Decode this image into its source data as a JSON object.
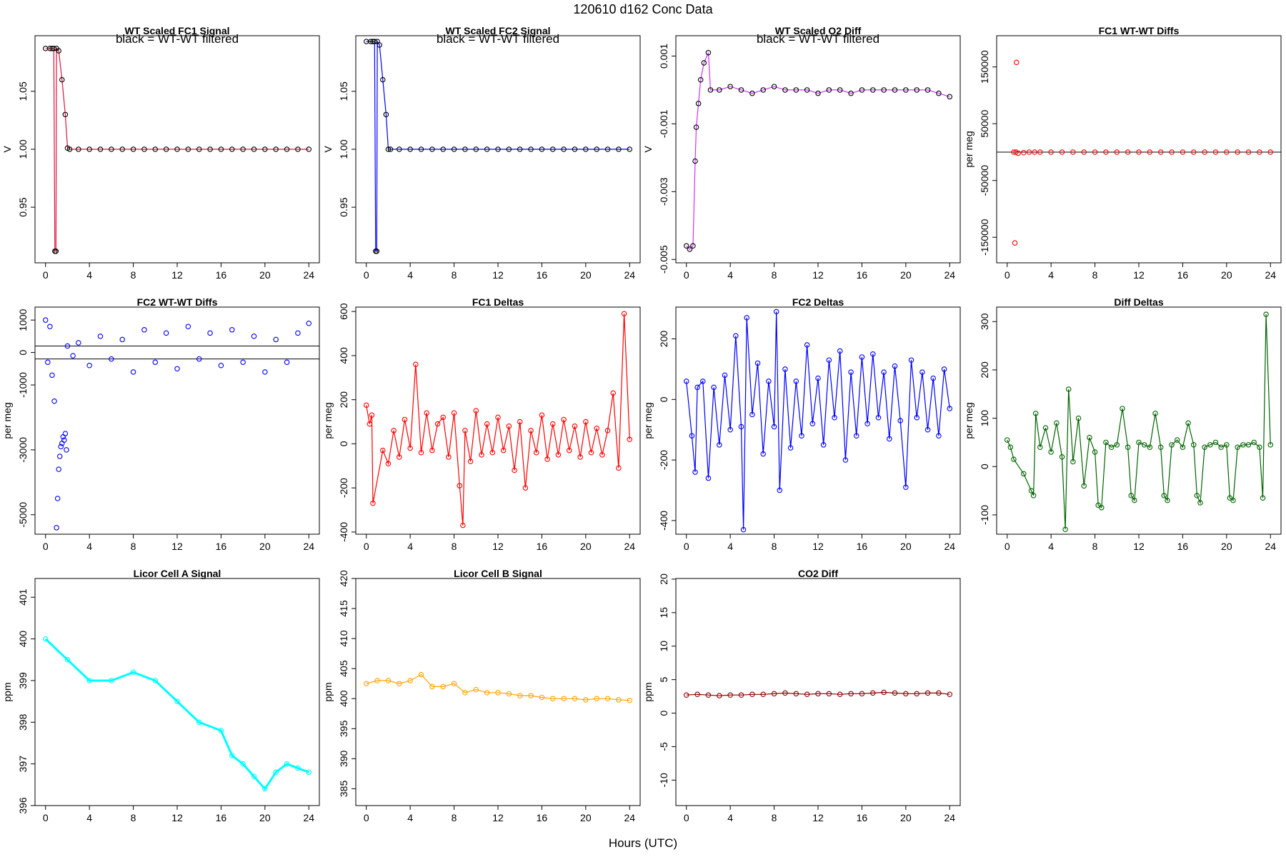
{
  "figure": {
    "title": "120610    d162    Conc Data",
    "xlabel": "Hours (UTC)"
  },
  "chart_data": [
    {
      "type": "line",
      "title": "WT Scaled FC1 Signal",
      "ylabel": "V",
      "note": "black = WT-WT filtered",
      "color": "#DC143C",
      "marker": "#000000",
      "xlim": [
        -0.96,
        24.96
      ],
      "xticks": [
        0,
        4,
        8,
        12,
        16,
        20,
        24
      ],
      "ylim": [
        0.902,
        1.098
      ],
      "yticks": [
        "0.95",
        "1.00",
        "1.05"
      ],
      "yticks_at": [
        0.95,
        1.0,
        1.05
      ],
      "x": [
        0,
        0.4,
        0.6,
        0.75,
        0.85,
        0.95,
        1.0,
        1.2,
        1.5,
        1.8,
        2.0,
        2.2,
        3,
        4,
        5,
        6,
        7,
        8,
        9,
        10,
        11,
        12,
        13,
        14,
        15,
        16,
        17,
        18,
        19,
        20,
        21,
        22,
        23,
        24
      ],
      "y": [
        1.087,
        1.087,
        1.087,
        1.087,
        0.912,
        0.912,
        1.087,
        1.085,
        1.06,
        1.03,
        1.001,
        1.0,
        1.0,
        1.0,
        1.0,
        1.0,
        1.0,
        1.0,
        1.0,
        1.0,
        1.0,
        1.0,
        1.0,
        1.0,
        1.0,
        1.0,
        1.0,
        1.0,
        1.0,
        1.0,
        1.0,
        1.0,
        1.0,
        1.0
      ]
    },
    {
      "type": "line",
      "title": "WT Scaled FC2 Signal",
      "ylabel": "V",
      "note": "black = WT-WT filtered",
      "color": "#0000FF",
      "marker": "#000000",
      "xlim": [
        -0.96,
        24.96
      ],
      "xticks": [
        0,
        4,
        8,
        12,
        16,
        20,
        24
      ],
      "ylim": [
        0.902,
        1.098
      ],
      "yticks": [
        "0.95",
        "1.00",
        "1.05"
      ],
      "yticks_at": [
        0.95,
        1.0,
        1.05
      ],
      "x": [
        0,
        0.4,
        0.6,
        0.75,
        0.85,
        0.95,
        1.0,
        1.2,
        1.5,
        1.8,
        2.0,
        2.2,
        3,
        4,
        5,
        6,
        7,
        8,
        9,
        10,
        11,
        12,
        13,
        14,
        15,
        16,
        17,
        18,
        19,
        20,
        21,
        22,
        23,
        24
      ],
      "y": [
        1.093,
        1.093,
        1.093,
        1.093,
        0.912,
        0.912,
        1.093,
        1.09,
        1.06,
        1.03,
        1.0,
        1.0,
        1.0,
        1.0,
        1.0,
        1.0,
        1.0,
        1.0,
        1.0,
        1.0,
        1.0,
        1.0,
        1.0,
        1.0,
        1.0,
        1.0,
        1.0,
        1.0,
        1.0,
        1.0,
        1.0,
        1.0,
        1.0,
        1.0
      ]
    },
    {
      "type": "line",
      "title": "WT Scaled O2 Diff",
      "ylabel": "V",
      "note": "black = WT-WT filtered",
      "color": "#CC33FF",
      "marker": "#000000",
      "xlim": [
        -0.96,
        24.96
      ],
      "xticks": [
        0,
        4,
        8,
        12,
        16,
        20,
        24
      ],
      "ylim": [
        -0.0051,
        0.0016
      ],
      "yticks": [
        "-0.005",
        "-0.003",
        "-0.001",
        "0.001"
      ],
      "yticks_at": [
        -0.005,
        -0.003,
        -0.001,
        0.001
      ],
      "x": [
        0,
        0.3,
        0.6,
        0.8,
        0.9,
        1.1,
        1.3,
        1.6,
        2.0,
        2.2,
        3,
        4,
        5,
        6,
        7,
        8,
        9,
        10,
        11,
        12,
        13,
        14,
        15,
        16,
        17,
        18,
        19,
        20,
        21,
        22,
        23,
        24
      ],
      "y": [
        -0.0046,
        -0.0047,
        -0.0046,
        -0.0021,
        -0.0011,
        -0.0004,
        0.0003,
        0.0008,
        0.0011,
        0.0,
        0.0,
        0.0001,
        0.0,
        -0.0001,
        0.0,
        0.0001,
        0.0,
        0.0,
        0.0,
        -0.0001,
        0.0,
        0.0,
        -0.0001,
        0.0,
        0.0,
        0.0,
        0.0,
        0.0,
        0.0,
        0.0,
        -0.0001,
        -0.0002
      ]
    },
    {
      "type": "scatter",
      "title": "FC1 WT-WT Diffs",
      "ylabel": "per meg",
      "color": "#FF0000",
      "xlim": [
        -0.96,
        24.96
      ],
      "xticks": [
        0,
        4,
        8,
        12,
        16,
        20,
        24
      ],
      "ylim": [
        -195000,
        205000
      ],
      "yticks": [
        "-150000",
        "-50000",
        "50000",
        "150000"
      ],
      "yticks_at": [
        -150000,
        -50000,
        50000,
        150000
      ],
      "hlines": [
        0
      ],
      "x": [
        0.6,
        0.8,
        1.0,
        1.5,
        2,
        2.5,
        3,
        4,
        5,
        6,
        7,
        8,
        9,
        10,
        11,
        12,
        13,
        14,
        15,
        16,
        17,
        18,
        19,
        20,
        21,
        22,
        23,
        24,
        0.7,
        0.85
      ],
      "y": [
        0,
        0,
        -2000,
        -1000,
        0,
        0,
        0,
        0,
        0,
        0,
        0,
        0,
        0,
        0,
        0,
        0,
        0,
        0,
        0,
        0,
        0,
        0,
        0,
        0,
        0,
        0,
        0,
        0,
        -160000,
        158000
      ]
    },
    {
      "type": "scatter",
      "title": "FC2 WT-WT Diffs",
      "ylabel": "per meg",
      "color": "#0000FF",
      "xlim": [
        -0.96,
        24.96
      ],
      "xticks": [
        0,
        4,
        8,
        12,
        16,
        20,
        24
      ],
      "ylim": [
        -5600,
        1400
      ],
      "yticks": [
        "-5000",
        "-3000",
        "-1000",
        "0",
        "1000"
      ],
      "yticks_at": [
        -5000,
        -3000,
        -1000,
        0,
        1000
      ],
      "hlines": [
        200,
        -200
      ],
      "x": [
        0,
        0.2,
        0.4,
        0.6,
        0.8,
        1.0,
        1.1,
        1.2,
        1.3,
        1.4,
        1.5,
        1.6,
        1.7,
        1.8,
        1.9,
        2.0,
        2.5,
        3,
        4,
        5,
        6,
        7,
        8,
        9,
        10,
        11,
        12,
        13,
        14,
        15,
        16,
        17,
        18,
        19,
        20,
        21,
        22,
        23,
        24
      ],
      "y": [
        1000,
        -300,
        800,
        -700,
        -1500,
        -5400,
        -4500,
        -3600,
        -3200,
        -2900,
        -2800,
        -2600,
        -2700,
        -2500,
        -3000,
        200,
        -100,
        300,
        -400,
        500,
        -200,
        400,
        -600,
        700,
        -300,
        600,
        -500,
        800,
        -200,
        600,
        -400,
        700,
        -300,
        500,
        -600,
        400,
        -300,
        600,
        900
      ]
    },
    {
      "type": "line",
      "title": "FC1 Deltas",
      "ylabel": "per meg",
      "color": "#FF0000",
      "xlim": [
        -0.96,
        24.96
      ],
      "xticks": [
        0,
        4,
        8,
        12,
        16,
        20,
        24
      ],
      "ylim": [
        -410,
        620
      ],
      "yticks": [
        "-400",
        "-200",
        "0",
        "200",
        "400",
        "600"
      ],
      "yticks_at": [
        -400,
        -200,
        0,
        200,
        400,
        600
      ],
      "x": [
        0,
        0.3,
        0.5,
        0.6,
        1.5,
        2.0,
        2.5,
        3,
        3.5,
        4,
        4.5,
        5,
        5.5,
        6,
        6.5,
        7,
        7.5,
        8,
        8.5,
        8.8,
        9,
        9.5,
        10,
        10.5,
        11,
        11.5,
        12,
        12.5,
        13,
        13.5,
        14,
        14.5,
        15,
        15.5,
        16,
        16.5,
        17,
        17.5,
        18,
        18.5,
        19,
        19.5,
        20,
        20.5,
        21,
        21.5,
        22,
        22.5,
        23,
        23.5,
        24
      ],
      "y": [
        175,
        90,
        130,
        -270,
        -30,
        -90,
        60,
        -60,
        110,
        -20,
        360,
        -40,
        140,
        -30,
        90,
        120,
        -60,
        140,
        -190,
        -370,
        60,
        -80,
        150,
        -50,
        90,
        -40,
        120,
        -30,
        80,
        -120,
        100,
        -200,
        60,
        -40,
        130,
        -70,
        90,
        -50,
        110,
        -30,
        80,
        -60,
        100,
        -40,
        70,
        -50,
        60,
        230,
        -110,
        590,
        20
      ]
    },
    {
      "type": "line",
      "title": "FC2 Deltas",
      "ylabel": "per meg",
      "color": "#0000FF",
      "xlim": [
        -0.96,
        24.96
      ],
      "xticks": [
        0,
        4,
        8,
        12,
        16,
        20,
        24
      ],
      "ylim": [
        -445,
        305
      ],
      "yticks": [
        "-400",
        "-200",
        "0",
        "200"
      ],
      "yticks_at": [
        -400,
        -200,
        0,
        200
      ],
      "x": [
        0,
        0.5,
        0.8,
        1.0,
        1.5,
        2.0,
        2.5,
        3,
        3.5,
        4,
        4.5,
        5,
        5.2,
        5.5,
        6,
        6.5,
        7,
        7.5,
        8,
        8.2,
        8.5,
        9,
        9.5,
        10,
        10.5,
        11,
        11.5,
        12,
        12.5,
        13,
        13.5,
        14,
        14.5,
        15,
        15.5,
        16,
        16.5,
        17,
        17.5,
        18,
        18.5,
        19,
        19.5,
        20,
        20.5,
        21,
        21.5,
        22,
        22.5,
        23,
        23.5,
        24
      ],
      "y": [
        60,
        -120,
        -240,
        40,
        60,
        -260,
        40,
        -150,
        80,
        -100,
        210,
        -90,
        -430,
        270,
        -50,
        120,
        -180,
        60,
        -90,
        290,
        -300,
        100,
        -160,
        60,
        -120,
        180,
        -80,
        70,
        -150,
        130,
        -60,
        160,
        -200,
        90,
        -120,
        140,
        -80,
        150,
        -60,
        90,
        -130,
        110,
        -70,
        -290,
        130,
        -60,
        90,
        -100,
        70,
        -120,
        100,
        -30
      ]
    },
    {
      "type": "line",
      "title": "Diff Deltas",
      "ylabel": "per meg",
      "color": "#006400",
      "xlim": [
        -0.96,
        24.96
      ],
      "xticks": [
        0,
        4,
        8,
        12,
        16,
        20,
        24
      ],
      "ylim": [
        -140,
        330
      ],
      "yticks": [
        "-100",
        "0",
        "100",
        "200",
        "300"
      ],
      "yticks_at": [
        -100,
        0,
        100,
        200,
        300
      ],
      "x": [
        0,
        0.3,
        0.6,
        1.5,
        2.2,
        2.4,
        2.6,
        3,
        3.5,
        4,
        4.5,
        5,
        5.3,
        5.6,
        6,
        6.5,
        7,
        7.5,
        8,
        8.3,
        8.6,
        9,
        9.5,
        10,
        10.5,
        11,
        11.3,
        11.6,
        12,
        12.5,
        13,
        13.5,
        14,
        14.3,
        14.6,
        15,
        15.5,
        16,
        16.5,
        17,
        17.3,
        17.6,
        18,
        18.5,
        19,
        19.5,
        20,
        20.3,
        20.6,
        21,
        21.5,
        22,
        22.5,
        23,
        23.3,
        23.6,
        24
      ],
      "y": [
        55,
        40,
        15,
        -15,
        -50,
        -60,
        110,
        40,
        80,
        30,
        90,
        20,
        -130,
        160,
        10,
        100,
        -40,
        60,
        30,
        -80,
        -85,
        50,
        40,
        45,
        120,
        40,
        -60,
        -70,
        50,
        45,
        40,
        110,
        40,
        -60,
        -70,
        45,
        55,
        40,
        90,
        45,
        -60,
        -75,
        40,
        45,
        50,
        40,
        45,
        -65,
        -70,
        40,
        45,
        45,
        50,
        40,
        -65,
        315,
        45
      ]
    },
    {
      "type": "line",
      "title": "Licor Cell A Signal",
      "ylabel": "ppm",
      "color": "#00FFFF",
      "xlim": [
        -0.96,
        24.96
      ],
      "xticks": [
        0,
        4,
        8,
        12,
        16,
        20,
        24
      ],
      "ylim": [
        396.0,
        401.45
      ],
      "yticks": [
        "396",
        "397",
        "398",
        "399",
        "400",
        "401"
      ],
      "yticks_at": [
        396,
        397,
        398,
        399,
        400,
        401
      ],
      "x": [
        0,
        2,
        4,
        6,
        8,
        10,
        12,
        14,
        16,
        17,
        18,
        19,
        20,
        21,
        22,
        23,
        24
      ],
      "y": [
        400.0,
        399.5,
        399.0,
        399.0,
        399.2,
        399.0,
        398.5,
        398.0,
        397.8,
        397.2,
        397.0,
        396.7,
        396.4,
        396.8,
        397.0,
        396.9,
        396.8
      ]
    },
    {
      "type": "line",
      "title": "Licor Cell B Signal",
      "ylabel": "ppm",
      "color": "#FFA500",
      "xlim": [
        -0.96,
        24.96
      ],
      "xticks": [
        0,
        4,
        8,
        12,
        16,
        20,
        24
      ],
      "ylim": [
        382.2,
        420.0
      ],
      "yticks": [
        "385",
        "390",
        "395",
        "400",
        "405",
        "410",
        "415",
        "420"
      ],
      "yticks_at": [
        385,
        390,
        395,
        400,
        405,
        410,
        415,
        420
      ],
      "x": [
        0,
        1,
        2,
        3,
        4,
        5,
        6,
        7,
        8,
        9,
        10,
        11,
        12,
        13,
        14,
        15,
        16,
        17,
        18,
        19,
        20,
        21,
        22,
        23,
        24
      ],
      "y": [
        402.5,
        403,
        403,
        402.5,
        403,
        404,
        402,
        402,
        402.5,
        401,
        401.5,
        401,
        401,
        400.8,
        400.5,
        400.5,
        400.2,
        400,
        400,
        400,
        399.8,
        400,
        400,
        399.8,
        399.7
      ]
    },
    {
      "type": "line",
      "title": "CO2 Diff",
      "ylabel": "ppm",
      "color": "#8B0000",
      "xlim": [
        -0.96,
        24.96
      ],
      "xticks": [
        0,
        4,
        8,
        12,
        16,
        20,
        24
      ],
      "ylim": [
        -13.8,
        20.1
      ],
      "yticks": [
        "-10",
        "-5",
        "0",
        "5",
        "10",
        "15",
        "20"
      ],
      "yticks_at": [
        -10,
        -5,
        0,
        5,
        10,
        15,
        20
      ],
      "x": [
        0,
        1,
        2,
        3,
        4,
        5,
        6,
        7,
        8,
        9,
        10,
        11,
        12,
        13,
        14,
        15,
        16,
        17,
        18,
        19,
        20,
        21,
        22,
        23,
        24
      ],
      "y": [
        2.7,
        2.8,
        2.7,
        2.6,
        2.7,
        2.7,
        2.8,
        2.8,
        2.9,
        3.0,
        2.9,
        2.8,
        2.9,
        2.9,
        2.8,
        2.9,
        2.9,
        3.0,
        3.1,
        3.0,
        2.9,
        2.9,
        3.0,
        3.0,
        2.8
      ]
    }
  ]
}
